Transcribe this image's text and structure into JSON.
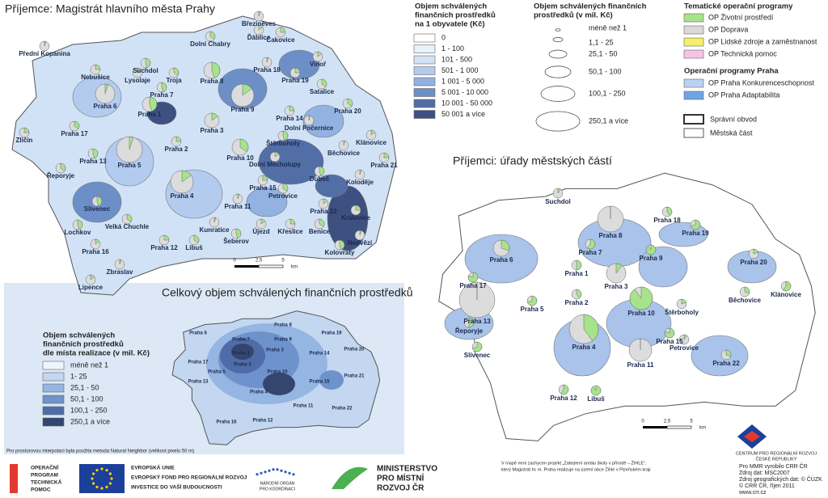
{
  "map1": {
    "title": "Příjemce: Magistrát hlavního města Prahy",
    "districts": [
      "Březiněves",
      "Ďáblice",
      "Čakovice",
      "Dolní Chabry",
      "Suchdol",
      "Přední Kopanina",
      "Lysolaje",
      "Nebušice",
      "Troja",
      "Praha 8",
      "Praha 18",
      "Vinoř",
      "Praha 19",
      "Satalice",
      "Praha 7",
      "Praha 6",
      "Praha 9",
      "Praha 14",
      "Praha 20",
      "Praha 1",
      "Dolní Počernice",
      "Praha 3",
      "Zličín",
      "Praha 17",
      "Štěrboholy",
      "Běchovice",
      "Klánovice",
      "Praha 2",
      "Praha 10",
      "Praha 13",
      "Praha 5",
      "Dolní Měcholupy",
      "Praha 21",
      "Řeporyje",
      "Dubeč",
      "Koloděje",
      "Praha 4",
      "Praha 15",
      "Petrovice",
      "Slivenec",
      "Praha 11",
      "Praha 22",
      "Královice",
      "Velká Chuchle",
      "Lochkov",
      "Kunratice",
      "Újezd",
      "Křeslice",
      "Benice",
      "Šeberov",
      "Nedvězí",
      "Praha 16",
      "Praha 12",
      "Libuš",
      "Kolovraty",
      "Zbraslav",
      "Lipence"
    ],
    "scale": [
      "0",
      "2,5",
      "5",
      "km"
    ]
  },
  "legend_per_capita": {
    "title_lines": [
      "Objem schválených",
      "finančních prostředků",
      "na 1 obyvatele (Kč)"
    ],
    "items": [
      {
        "label": "0",
        "color": "#ffffff"
      },
      {
        "label": "1 - 100",
        "color": "#e9f1fb"
      },
      {
        "label": "101 - 500",
        "color": "#d2e2f6"
      },
      {
        "label": "501 - 1 000",
        "color": "#b3cbee"
      },
      {
        "label": "1 001 - 5 000",
        "color": "#92b2e2"
      },
      {
        "label": "5 001 - 10 000",
        "color": "#6d8fc8"
      },
      {
        "label": "10 001 - 50 000",
        "color": "#526ea6"
      },
      {
        "label": "50 001 a více",
        "color": "#3d5080"
      }
    ]
  },
  "legend_volume": {
    "title_lines": [
      "Objem schválených finančních",
      "prostředků (v mil. Kč)"
    ],
    "items": [
      "méně než 1",
      "1,1 - 25",
      "25,1 - 50",
      "50,1 - 100",
      "100,1 - 250",
      "250,1 a více"
    ]
  },
  "legend_programs": {
    "title_thematic": "Tematické operační programy",
    "thematic": [
      {
        "label": "OP Životní prostředí",
        "color": "#a6e38b"
      },
      {
        "label": "OP Doprava",
        "color": "#d9d9d9"
      },
      {
        "label": "OP Lidské zdroje a zaměstnanost",
        "color": "#f5f06a"
      },
      {
        "label": "OP Technická pomoc",
        "color": "#f6c3e6"
      }
    ],
    "title_prague": "Operační programy Praha",
    "prague": [
      {
        "label": "OP Praha Konkurenceschopnost",
        "color": "#b9d2f2"
      },
      {
        "label": "OP Praha Adaptabilita",
        "color": "#6fa4e6"
      }
    ],
    "boundaries": [
      "Správní obvod",
      "Městská část"
    ]
  },
  "map2": {
    "title": "Příjemci: úřady městských částí",
    "districts": [
      "Suchdol",
      "Praha 18",
      "Praha 19",
      "Praha 8",
      "Praha 6",
      "Praha 7",
      "Praha 9",
      "Praha 20",
      "Praha 1",
      "Praha 17",
      "Praha 3",
      "Praha 2",
      "Praha 5",
      "Praha 13",
      "Běchovice",
      "Klánovice",
      "Praha 10",
      "Štěrboholy",
      "Řeporyje",
      "Praha 15",
      "Petrovice",
      "Praha 4",
      "Slivenec",
      "Praha 11",
      "Praha 22",
      "Praha 12",
      "Libuš"
    ],
    "scale": [
      "0",
      "2,5",
      "5",
      "km"
    ]
  },
  "map3": {
    "title": "Celkový objem schválených finančních prostředků",
    "legend_title_lines": [
      "Objem schválených",
      "finančních prostředků",
      "dle místa realizace (v mil. Kč)"
    ],
    "legend": [
      {
        "label": "méně než 1",
        "color": "#eef4fb"
      },
      {
        "label": "1- 25",
        "color": "#c4d7f0"
      },
      {
        "label": "25,1 - 50",
        "color": "#95b5e2"
      },
      {
        "label": "50,1 - 100",
        "color": "#6e92cb"
      },
      {
        "label": "100,1 - 250",
        "color": "#4f6ca8"
      },
      {
        "label": "250,1 a více",
        "color": "#34466f"
      }
    ],
    "districts": [
      "Praha 6",
      "Praha 8",
      "Praha 19",
      "Praha 9",
      "Praha 17",
      "Praha 7",
      "Praha 1",
      "Praha 3",
      "Praha 14",
      "Praha 20",
      "Praha 2",
      "Praha 10",
      "Praha 5",
      "Praha 15",
      "Praha 21",
      "Praha 4",
      "Praha 22",
      "Praha 11",
      "Praha 16",
      "Praha 12",
      "Praha 13"
    ],
    "note": "Pro prostorovou interpolaci byla použita metoda Natural Neighbor (velikost pixelu 50 m)"
  },
  "footer": {
    "optp": [
      "OPERAČNÍ",
      "PROGRAM",
      "TECHNICKÁ",
      "POMOC"
    ],
    "eu": [
      "EVROPSKÁ UNIE",
      "EVROPSKÝ FOND PRO REGIONÁLNÍ ROZVOJ",
      "INVESTICE DO VAŠÍ BUDOUCNOSTI"
    ],
    "nok": [
      "NÁRODNÍ ORGÁN",
      "PRO KOORDINACI"
    ],
    "mmr": [
      "MINISTERSTVO",
      "PRO MÍSTNÍ",
      "ROZVOJ ČR"
    ],
    "note_lines": [
      "V mapě není zachycen projekt „Zateplení areálu školy v přírodě – ŽIHLE“,",
      "který Magistrát hl. m. Praha realizuje na území obce Žihle v Plzeňském kraji"
    ],
    "crr": [
      "CENTRUM PRO REGIONÁLNÍ ROZVOJ",
      "ČESKÉ REPUBLIKY"
    ],
    "credits": [
      "Pro MMR vyrobilo CRR ČR",
      "Zdroj dat: MSC2007",
      "Zdroj geografických dat: © ČÚZK",
      "© CRR ČR, říjen 2011",
      "www.crr.cz"
    ]
  }
}
